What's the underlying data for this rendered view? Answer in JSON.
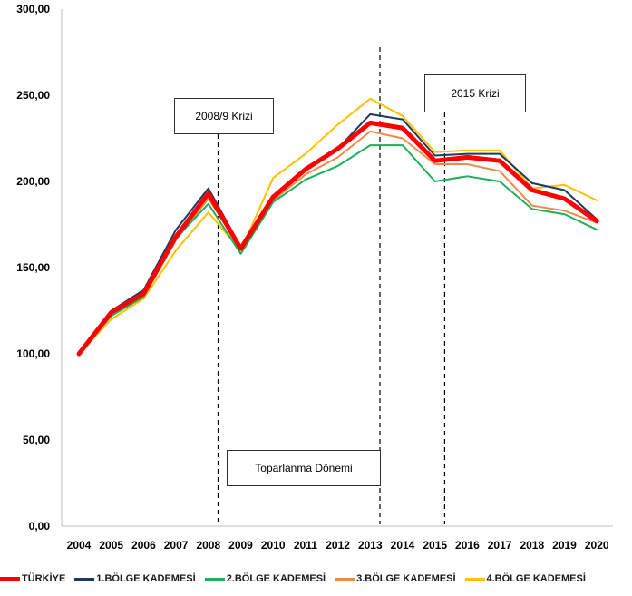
{
  "chart_data": {
    "type": "line",
    "x": [
      "2004",
      "2005",
      "2006",
      "2007",
      "2008",
      "2009",
      "2010",
      "2011",
      "2012",
      "2013",
      "2014",
      "2015",
      "2016",
      "2017",
      "2018",
      "2019",
      "2020"
    ],
    "yticks": [
      "0,00",
      "50,00",
      "100,00",
      "150,00",
      "200,00",
      "250,00",
      "300,00"
    ],
    "ylim": [
      0,
      300
    ],
    "grid": false,
    "legend_position": "bottom",
    "series": [
      {
        "name": "TÜRKİYE",
        "color": "#ff0000",
        "values": [
          100,
          124,
          135,
          168,
          193,
          161,
          191,
          207,
          219,
          234,
          231,
          212,
          214,
          212,
          195,
          190,
          177
        ]
      },
      {
        "name": "1.BÖLGE KADEMESİ",
        "color": "#1f3864",
        "values": [
          100,
          125,
          137,
          172,
          196,
          162,
          190,
          208,
          219,
          239,
          236,
          215,
          216,
          216,
          199,
          195,
          178
        ]
      },
      {
        "name": "2.BÖLGE KADEMESİ",
        "color": "#1fae5a",
        "values": [
          100,
          122,
          133,
          167,
          187,
          158,
          188,
          201,
          209,
          221,
          221,
          200,
          203,
          200,
          184,
          181,
          172
        ]
      },
      {
        "name": "3.BÖLGE KADEMESİ",
        "color": "#f08a4b",
        "values": [
          100,
          123,
          133,
          166,
          190,
          161,
          189,
          204,
          214,
          229,
          225,
          210,
          210,
          206,
          186,
          183,
          176
        ]
      },
      {
        "name": "4.BÖLGE KADEMESİ",
        "color": "#ffc000",
        "values": [
          100,
          120,
          132,
          160,
          182,
          160,
          202,
          216,
          233,
          248,
          238,
          217,
          218,
          218,
          196,
          198,
          189
        ]
      }
    ],
    "annotations": [
      {
        "label": "2008/9 Krizi",
        "at": 2008.3
      },
      {
        "label": "2015 Krizi",
        "at": 2015.3
      },
      {
        "label": "Toparlanma Dönemi",
        "at": 2013.3
      }
    ]
  }
}
